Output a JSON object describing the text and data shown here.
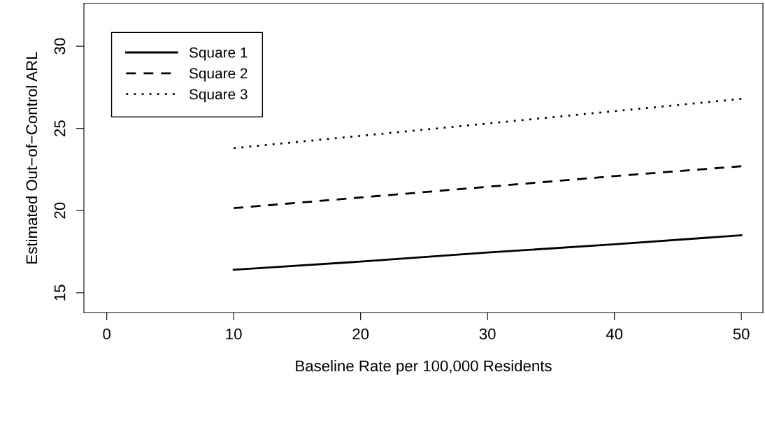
{
  "chart_data": {
    "type": "line",
    "xlabel": "Baseline Rate per 100,000 Residents",
    "ylabel": "Estimated Out−of−Control ARL",
    "x": [
      10,
      20,
      30,
      40,
      50
    ],
    "series": [
      {
        "name": "Square 1",
        "color": "#000000",
        "line_style": "solid",
        "values": [
          16.4,
          16.9,
          17.45,
          17.95,
          18.5
        ]
      },
      {
        "name": "Square 2",
        "color": "#000000",
        "line_style": "dashed",
        "values": [
          20.15,
          20.8,
          21.45,
          22.1,
          22.7
        ]
      },
      {
        "name": "Square 3",
        "color": "#000000",
        "line_style": "dotted",
        "values": [
          23.8,
          24.55,
          25.3,
          26.05,
          26.8
        ]
      }
    ],
    "xlim": [
      -1.8,
      51.7
    ],
    "ylim": [
      13.8,
      32.6
    ],
    "xticks": [
      0,
      10,
      20,
      30,
      40,
      50
    ],
    "yticks": [
      15,
      20,
      25,
      30
    ],
    "grid": false,
    "legend": "top left",
    "marker": "none"
  }
}
